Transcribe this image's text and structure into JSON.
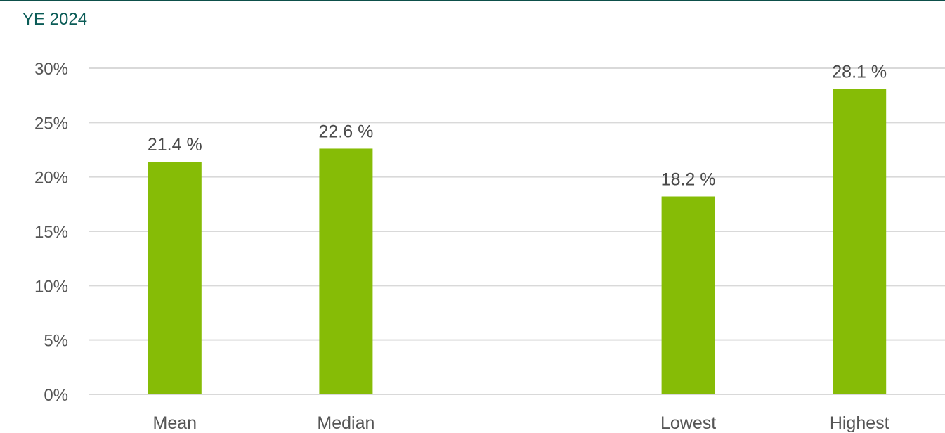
{
  "chart_data": {
    "type": "bar",
    "title": "YE 2024",
    "categories": [
      "Mean",
      "Median",
      "",
      "Lowest",
      "Highest"
    ],
    "values": [
      21.4,
      22.6,
      null,
      18.2,
      28.1
    ],
    "data_labels": [
      "21.4 %",
      "22.6 %",
      "",
      "18.2 %",
      "28.1 %"
    ],
    "y_ticks": [
      "0%",
      "5%",
      "10%",
      "15%",
      "20%",
      "25%",
      "30%"
    ],
    "ylim": [
      0,
      30
    ],
    "grid": true,
    "bar_color": "#86bc06",
    "grid_color": "#d9d9d9",
    "title_color": "#0b5c57"
  }
}
